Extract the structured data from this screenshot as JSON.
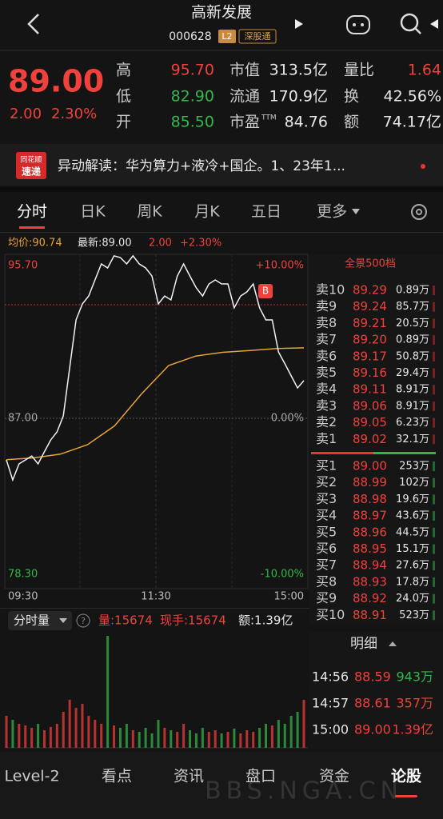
{
  "header": {
    "title": "高新发展",
    "code": "000628",
    "badges": [
      "L2",
      "深股通"
    ]
  },
  "quote": {
    "price": "89.00",
    "change": "2.00",
    "change_pct": "2.30%",
    "stats": [
      [
        {
          "label": "高",
          "value": "95.70"
        },
        {
          "label": "市值",
          "value": "313.5亿"
        },
        {
          "label": "量比",
          "value": "1.64"
        }
      ],
      [
        {
          "label": "低",
          "value": "82.90"
        },
        {
          "label": "流通",
          "value": "170.9亿"
        },
        {
          "label": "换",
          "value": "42.56%"
        }
      ],
      [
        {
          "label": "开",
          "value": "85.50"
        },
        {
          "label": "市盈",
          "sup": "TTM",
          "value": "84.76"
        },
        {
          "label": "额",
          "value": "74.17亿"
        }
      ]
    ]
  },
  "news": {
    "badge_top": "同花顺",
    "badge_bottom": "速递",
    "text": "异动解读：华为算力+液冷+国企。1、23年1..."
  },
  "tabs": [
    "分时",
    "日K",
    "周K",
    "月K",
    "五日",
    "更多"
  ],
  "intraday": {
    "avg_label": "均价:90.74",
    "latest_label": "最新:89.00",
    "change": "2.00",
    "change_pct": "+2.30%",
    "marker": "B",
    "ylim": [
      78.3,
      95.7
    ],
    "yticks": [
      {
        "value": 95.7,
        "label": "95.70"
      },
      {
        "value": 87,
        "label": "87.00"
      },
      {
        "value": 78.3,
        "label": "78.30"
      }
    ],
    "pct_labels": [
      "+10.00%",
      "0.00%",
      "-10.00%"
    ],
    "xticks": [
      "09:30",
      "11:30",
      "15:00"
    ],
    "price": [
      84.79,
      83.73,
      84.58,
      84.79,
      85.0,
      84.58,
      85.22,
      85.85,
      86.28,
      87.13,
      89.67,
      92.22,
      93.07,
      93.49,
      94.34,
      95.19,
      94.98,
      95.62,
      95.53,
      95.19,
      95.62,
      95.19,
      94.98,
      94.55,
      93.07,
      93.49,
      93.28,
      94.55,
      95.19,
      94.55,
      93.92,
      93.49,
      94.13,
      94.34,
      94.13,
      94.13,
      92.86,
      93.49,
      93.71,
      94.13,
      92.86,
      92.22,
      92.22,
      90.52,
      89.89,
      89.25,
      88.61,
      89.0
    ],
    "avg": [
      84.8,
      84.9,
      85.1,
      85.6,
      86.6,
      88.3,
      89.8,
      90.3,
      90.5,
      90.6,
      90.7,
      90.74
    ]
  },
  "volume": {
    "title": "分时量",
    "vol_label": "量:15674",
    "hand_label": "现手:15674",
    "amount_label": "额:1.39亿",
    "values": [
      40,
      35,
      30,
      28,
      25,
      30,
      22,
      26,
      30,
      45,
      60,
      50,
      55,
      40,
      35,
      30,
      140,
      28,
      25,
      30,
      22,
      20,
      25,
      18,
      35,
      25,
      22,
      20,
      30,
      22,
      18,
      25,
      20,
      22,
      18,
      20,
      24,
      18,
      22,
      20,
      25,
      30,
      28,
      35,
      30,
      40,
      45,
      60
    ]
  },
  "orderbook": {
    "title": "全景500档",
    "sell": [
      [
        "卖10",
        "89.29",
        "0.89万"
      ],
      [
        "卖9",
        "89.24",
        "85.7万"
      ],
      [
        "卖8",
        "89.21",
        "20.5万"
      ],
      [
        "卖7",
        "89.20",
        "0.89万"
      ],
      [
        "卖6",
        "89.17",
        "50.8万"
      ],
      [
        "卖5",
        "89.16",
        "29.4万"
      ],
      [
        "卖4",
        "89.11",
        "8.91万"
      ],
      [
        "卖3",
        "89.06",
        "8.91万"
      ],
      [
        "卖2",
        "89.05",
        "6.23万"
      ],
      [
        "卖1",
        "89.02",
        "32.1万"
      ]
    ],
    "buy": [
      [
        "买1",
        "89.00",
        "253万"
      ],
      [
        "买2",
        "88.99",
        "102万"
      ],
      [
        "买3",
        "88.98",
        "19.6万"
      ],
      [
        "买4",
        "88.97",
        "43.6万"
      ],
      [
        "买5",
        "88.96",
        "44.5万"
      ],
      [
        "买6",
        "88.95",
        "15.1万"
      ],
      [
        "买7",
        "88.94",
        "27.6万"
      ],
      [
        "买8",
        "88.93",
        "17.8万"
      ],
      [
        "买9",
        "88.92",
        "24.0万"
      ],
      [
        "买10",
        "88.91",
        "523万"
      ]
    ]
  },
  "detail": {
    "title": "明细",
    "trades": [
      [
        "14:56",
        "88.59",
        "943万"
      ],
      [
        "14:57",
        "88.61",
        "357万"
      ],
      [
        "15:00",
        "89.00",
        "1.39亿"
      ]
    ]
  },
  "nav": [
    "Level-2",
    "看点",
    "资讯",
    "盘口",
    "资金",
    "论股"
  ],
  "watermark": "BBS.NGA.CN"
}
